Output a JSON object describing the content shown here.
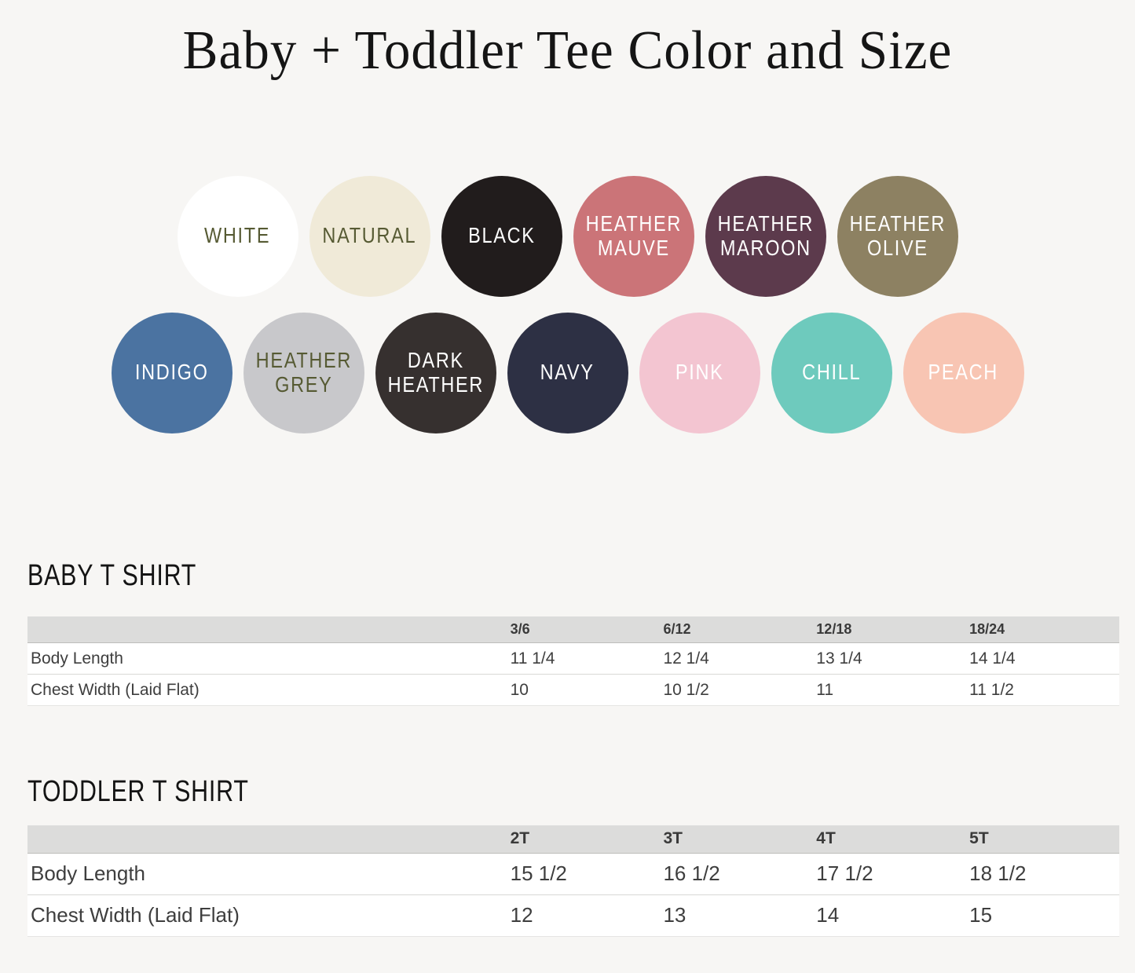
{
  "title": "Baby + Toddler Tee Color and Size",
  "swatch_rows": [
    {
      "circles": [
        {
          "name": "white",
          "label": "WHITE",
          "bg": "#ffffff",
          "fg": "#565a33"
        },
        {
          "name": "natural",
          "label": "NATURAL",
          "bg": "#f0ead8",
          "fg": "#565a33"
        },
        {
          "name": "black",
          "label": "BLACK",
          "bg": "#211c1c",
          "fg": "#ffffff"
        },
        {
          "name": "heather-mauve",
          "label": "HEATHER\nMAUVE",
          "bg": "#cb7478",
          "fg": "#ffffff"
        },
        {
          "name": "heather-maroon",
          "label": "HEATHER\nMAROON",
          "bg": "#5c3a4c",
          "fg": "#ffffff"
        },
        {
          "name": "heather-olive",
          "label": "HEATHER\nOLIVE",
          "bg": "#8d8162",
          "fg": "#ffffff"
        }
      ]
    },
    {
      "circles": [
        {
          "name": "indigo",
          "label": "INDIGO",
          "bg": "#4b73a1",
          "fg": "#ffffff"
        },
        {
          "name": "heather-grey",
          "label": "HEATHER\nGREY",
          "bg": "#c8c8cb",
          "fg": "#565a33"
        },
        {
          "name": "dark-heather",
          "label": "DARK\nHEATHER",
          "bg": "#36302f",
          "fg": "#ffffff"
        },
        {
          "name": "navy",
          "label": "NAVY",
          "bg": "#2d3044",
          "fg": "#ffffff"
        },
        {
          "name": "pink",
          "label": "PINK",
          "bg": "#f3c5d1",
          "fg": "#ffffff"
        },
        {
          "name": "chill",
          "label": "CHILL",
          "bg": "#6ecabd",
          "fg": "#ffffff"
        },
        {
          "name": "peach",
          "label": "PEACH",
          "bg": "#f8c5b3",
          "fg": "#ffffff"
        }
      ]
    }
  ],
  "baby": {
    "heading": "BABY T SHIRT",
    "columns": [
      "3/6",
      "6/12",
      "12/18",
      "18/24"
    ],
    "rows": [
      {
        "label": "Body Length",
        "values": [
          "11 1/4",
          "12 1/4",
          "13 1/4",
          "14 1/4"
        ]
      },
      {
        "label": "Chest Width (Laid Flat)",
        "values": [
          "10",
          "10 1/2",
          "11",
          "11 1/2"
        ]
      }
    ]
  },
  "toddler": {
    "heading": "TODDLER T SHIRT",
    "columns": [
      "2T",
      "3T",
      "4T",
      "5T"
    ],
    "rows": [
      {
        "label": "Body Length",
        "values": [
          "15 1/2",
          "16 1/2",
          "17 1/2",
          "18 1/2"
        ]
      },
      {
        "label": "Chest Width (Laid Flat)",
        "values": [
          "12",
          "13",
          "14",
          "15"
        ]
      }
    ]
  }
}
